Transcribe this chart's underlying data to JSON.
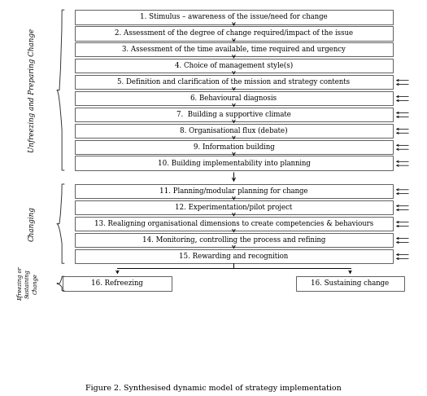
{
  "title": "Figure 2. Synthesised dynamic model of strategy implementation",
  "boxes_section1": [
    "1. Stimulus – awareness of the issue/need for change",
    "2. Assessment of the degree of change required/impact of the issue",
    "3. Assessment of the time available, time required and urgency",
    "4. Choice of management style(s)",
    "5. Definition and clarification of the mission and strategy contents",
    "6. Behavioural diagnosis",
    "7.  Building a supportive climate",
    "8. Organisational flux (debate)",
    "9. Information building",
    "10. Building implementability into planning"
  ],
  "boxes_section2": [
    "11. Planning/modular planning for change",
    "12. Experimentation/pilot project",
    "13. Realigning organisational dimensions to create competencies & behaviours",
    "14. Monitoring, controlling the process and refining",
    "15. Rewarding and recognition"
  ],
  "boxes_section3_left": "16. Refreezing",
  "boxes_section3_right": "16. Sustaining change",
  "label_section1": "Unfreezing and Preparing Change",
  "label_section2": "Changing",
  "label_section3": "Efreezing or\nSustaining\nChange",
  "bg_color": "#ffffff",
  "box_edgecolor": "#444444",
  "text_color": "#000000",
  "arrow_color": "#000000",
  "fontsize": 6.2,
  "label_fontsize": 6.5
}
